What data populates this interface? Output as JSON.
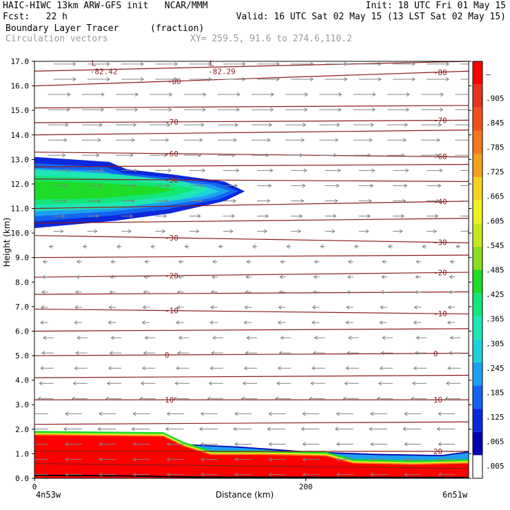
{
  "header": {
    "title_left": "HAIC-HIWC 13km ARW-GFS init   NCAR/MMM",
    "init": "Init: 18 UTC Fri 01 May 15",
    "fcst_label": "Fcst:   22 h",
    "valid": "Valid: 16 UTC Sat 02 May 15 (13 LST Sat 02 May 15)",
    "field": "Boundary Layer Tracer",
    "field_units": "(fraction)",
    "overlay": "Circulation vectors",
    "xy_range": "XY= 259.5, 91.6 to 274.6,110.2"
  },
  "colors": {
    "contour": "#8b1a1a",
    "vector": "#808080",
    "scale": [
      "#ffffff",
      "#0000b4",
      "#0a28dc",
      "#1464f0",
      "#1ea0f0",
      "#1ed2dc",
      "#1ee6b4",
      "#14e678",
      "#1edc28",
      "#8cdc1e",
      "#c8e61e",
      "#f0f01e",
      "#f5d21e",
      "#f5a01e",
      "#f5781e",
      "#f0501e",
      "#e6321e",
      "#ff0000"
    ]
  },
  "chart_data": {
    "type": "heatmap",
    "xlabel": "Distance (km)",
    "ylabel": "Height (km)",
    "xlim": [
      0,
      320
    ],
    "ylim": [
      0,
      17
    ],
    "x_ticks": [
      {
        "value": 0,
        "label": "0"
      },
      {
        "value": 200,
        "label": "200"
      }
    ],
    "x_end_labels": {
      "left": "4n53w",
      "right": "6n51w"
    },
    "y_ticks": [
      "0.0",
      "1.0",
      "2.0",
      "3.0",
      "4.0",
      "5.0",
      "6.0",
      "7.0",
      "8.0",
      "9.0",
      "10.0",
      "11.0",
      "12.0",
      "13.0",
      "14.0",
      "15.0",
      "16.0",
      "17.0"
    ],
    "colorbar_labels": [
      ".005",
      ".065",
      ".125",
      ".185",
      ".245",
      ".305",
      ".365",
      ".425",
      ".485",
      ".545",
      ".605",
      ".665",
      ".725",
      ".785",
      ".845",
      ".905",
      "–"
    ],
    "temperature_contours": [
      {
        "label": "-80",
        "y0": 16.0,
        "y1": 16.6,
        "label_left_x": 98,
        "label_right_x": 294
      },
      {
        "label": "-70",
        "y0": 14.5,
        "y1": 14.6,
        "label_left_x": 96,
        "label_right_x": 294
      },
      {
        "label": "-60",
        "y0": 13.3,
        "y1": 13.1,
        "label_left_x": 96,
        "label_right_x": 294
      },
      {
        "label": "-50",
        "y0": 12.2,
        "y1": 12.1,
        "label_left_x": 96,
        "label_right_x": null
      },
      {
        "label": "-40",
        "y0": 11.0,
        "y1": 11.3,
        "label_left_x": null,
        "label_right_x": 294
      },
      {
        "label": "-30",
        "y0": 9.9,
        "y1": 9.6,
        "label_left_x": 96,
        "label_right_x": 294
      },
      {
        "label": "-20",
        "y0": 8.2,
        "y1": 8.4,
        "label_left_x": 96,
        "label_right_x": 294
      },
      {
        "label": "-10",
        "y0": 6.9,
        "y1": 6.7,
        "label_left_x": 96,
        "label_right_x": 294
      },
      {
        "label": "0",
        "y0": 5.0,
        "y1": 5.1,
        "label_left_x": 96,
        "label_right_x": 294
      },
      {
        "label": "10",
        "y0": 3.2,
        "y1": 3.2,
        "label_left_x": 96,
        "label_right_x": 294
      },
      {
        "label": "20",
        "y0": 1.1,
        "y1": 1.1,
        "label_left_x": null,
        "label_right_x": 294
      }
    ],
    "extra_contours": [
      {
        "y0": 16.6,
        "y1": 17.0
      },
      {
        "y0": 15.1,
        "y1": 15.2
      },
      {
        "y0": 14.0,
        "y1": 14.2
      },
      {
        "y0": 12.7,
        "y1": 12.8
      },
      {
        "y0": 10.4,
        "y1": 10.6
      },
      {
        "y0": 9.0,
        "y1": 9.1
      },
      {
        "y0": 7.5,
        "y1": 7.6
      },
      {
        "y0": 6.0,
        "y1": 6.1
      },
      {
        "y0": 4.1,
        "y1": 4.2
      },
      {
        "y0": 2.2,
        "y1": 2.3
      },
      {
        "y0": 0.6,
        "y1": 0.4
      }
    ],
    "lows": [
      {
        "label": "L",
        "value": "-82.42",
        "x": 41,
        "y": 16.7
      },
      {
        "label": "L",
        "value": "-82.29",
        "x": 128,
        "y": 16.7
      }
    ],
    "tracer_upper_plume": {
      "description_points_top": [
        [
          0,
          13.1
        ],
        [
          55,
          12.9
        ],
        [
          68,
          12.6
        ],
        [
          100,
          12.4
        ],
        [
          140,
          12.1
        ],
        [
          155,
          11.7
        ]
      ],
      "description_points_bottom": [
        [
          155,
          11.7
        ],
        [
          140,
          11.3
        ],
        [
          100,
          10.8
        ],
        [
          60,
          10.5
        ],
        [
          0,
          10.2
        ]
      ],
      "core_top": [
        [
          0,
          12.6
        ],
        [
          60,
          12.4
        ],
        [
          110,
          12.1
        ],
        [
          130,
          11.8
        ]
      ],
      "core_bottom": [
        [
          130,
          11.8
        ],
        [
          110,
          11.4
        ],
        [
          60,
          11.0
        ],
        [
          0,
          10.9
        ]
      ]
    },
    "tracer_boundary_layer": {
      "top": [
        [
          0,
          1.85
        ],
        [
          95,
          1.8
        ],
        [
          110,
          1.4
        ],
        [
          150,
          1.3
        ],
        [
          200,
          1.1
        ],
        [
          250,
          1.0
        ],
        [
          300,
          0.95
        ],
        [
          320,
          1.1
        ]
      ],
      "red_top": [
        [
          0,
          1.75
        ],
        [
          95,
          1.7
        ],
        [
          110,
          1.3
        ],
        [
          130,
          0.95
        ],
        [
          170,
          0.95
        ],
        [
          215,
          0.9
        ],
        [
          235,
          0.6
        ],
        [
          280,
          0.55
        ],
        [
          320,
          0.6
        ]
      ]
    }
  }
}
